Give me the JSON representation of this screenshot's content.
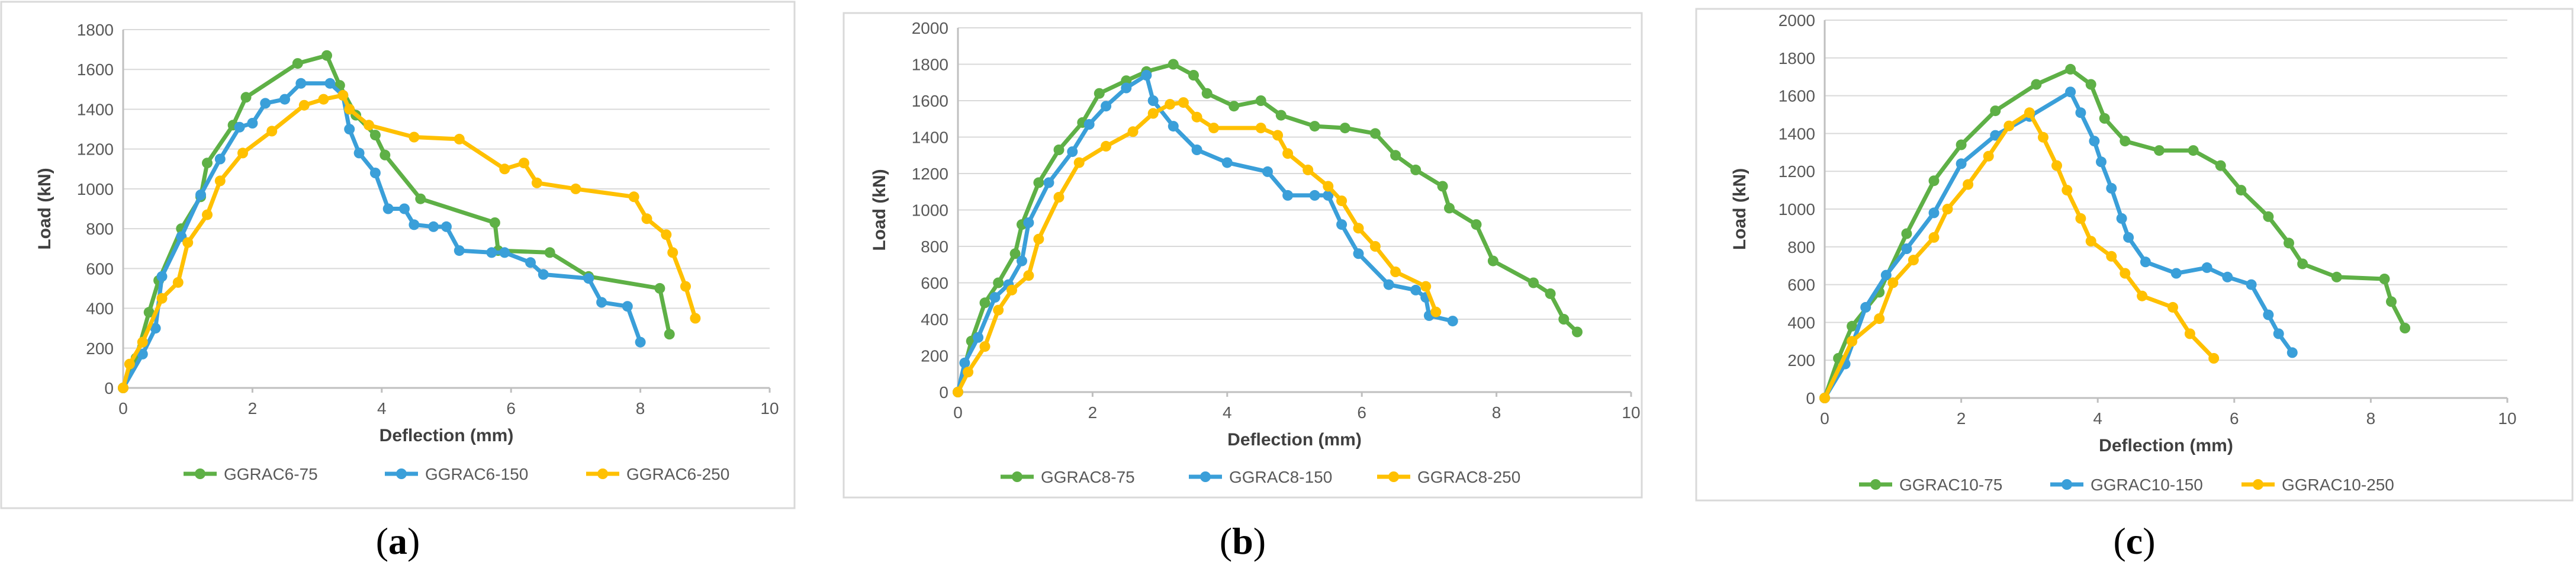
{
  "colors": {
    "GG": "#5eb046",
    "BL": "#3a9fd9",
    "YE": "#ffc000"
  },
  "chart_data": [
    {
      "type": "line",
      "panel_label": {
        "open": "(",
        "letter": "a",
        "close": ")"
      },
      "xlabel": "Deflection (mm)",
      "ylabel": "Load (kN)",
      "xlim": [
        0,
        10
      ],
      "ylim": [
        0,
        1800
      ],
      "xticks": [
        0,
        2,
        4,
        6,
        8,
        10
      ],
      "yticks": [
        0,
        200,
        400,
        600,
        800,
        1000,
        1200,
        1400,
        1600,
        1800
      ],
      "series": [
        {
          "name": "GGRAC6-75",
          "color": "GG",
          "points": [
            [
              0,
              0
            ],
            [
              0.2,
              150
            ],
            [
              0.4,
              380
            ],
            [
              0.55,
              540
            ],
            [
              0.9,
              800
            ],
            [
              1.2,
              960
            ],
            [
              1.3,
              1130
            ],
            [
              1.7,
              1320
            ],
            [
              1.9,
              1460
            ],
            [
              2.7,
              1630
            ],
            [
              3.15,
              1670
            ],
            [
              3.35,
              1520
            ],
            [
              3.6,
              1370
            ],
            [
              3.9,
              1270
            ],
            [
              4.05,
              1170
            ],
            [
              4.6,
              950
            ],
            [
              5.75,
              830
            ],
            [
              5.8,
              690
            ],
            [
              6.6,
              680
            ],
            [
              7.2,
              560
            ],
            [
              8.3,
              500
            ],
            [
              8.45,
              270
            ]
          ]
        },
        {
          "name": "GGRAC6-150",
          "color": "BL",
          "points": [
            [
              0,
              0
            ],
            [
              0.3,
              170
            ],
            [
              0.5,
              300
            ],
            [
              0.6,
              560
            ],
            [
              0.9,
              760
            ],
            [
              1.2,
              970
            ],
            [
              1.5,
              1150
            ],
            [
              1.8,
              1310
            ],
            [
              2.0,
              1330
            ],
            [
              2.2,
              1430
            ],
            [
              2.5,
              1450
            ],
            [
              2.75,
              1530
            ],
            [
              3.2,
              1530
            ],
            [
              3.4,
              1470
            ],
            [
              3.5,
              1300
            ],
            [
              3.65,
              1180
            ],
            [
              3.9,
              1080
            ],
            [
              4.1,
              900
            ],
            [
              4.35,
              900
            ],
            [
              4.5,
              820
            ],
            [
              4.8,
              810
            ],
            [
              5.0,
              810
            ],
            [
              5.2,
              690
            ],
            [
              5.7,
              680
            ],
            [
              5.9,
              680
            ],
            [
              6.3,
              630
            ],
            [
              6.5,
              570
            ],
            [
              7.2,
              550
            ],
            [
              7.4,
              430
            ],
            [
              7.8,
              410
            ],
            [
              8.0,
              230
            ]
          ]
        },
        {
          "name": "GGRAC6-250",
          "color": "YE",
          "points": [
            [
              0,
              0
            ],
            [
              0.1,
              120
            ],
            [
              0.3,
              230
            ],
            [
              0.6,
              450
            ],
            [
              0.85,
              530
            ],
            [
              1.0,
              730
            ],
            [
              1.3,
              870
            ],
            [
              1.5,
              1040
            ],
            [
              1.85,
              1180
            ],
            [
              2.3,
              1290
            ],
            [
              2.8,
              1420
            ],
            [
              3.1,
              1450
            ],
            [
              3.4,
              1470
            ],
            [
              3.5,
              1400
            ],
            [
              3.8,
              1320
            ],
            [
              4.5,
              1260
            ],
            [
              5.2,
              1250
            ],
            [
              5.9,
              1100
            ],
            [
              6.2,
              1130
            ],
            [
              6.4,
              1030
            ],
            [
              7.0,
              1000
            ],
            [
              7.9,
              960
            ],
            [
              8.1,
              850
            ],
            [
              8.4,
              770
            ],
            [
              8.5,
              680
            ],
            [
              8.7,
              510
            ],
            [
              8.85,
              350
            ]
          ]
        }
      ]
    },
    {
      "type": "line",
      "panel_label": {
        "open": "(",
        "letter": "b",
        "close": ")"
      },
      "xlabel": "Deflection (mm)",
      "ylabel": "Load (kN)",
      "xlim": [
        0,
        10
      ],
      "ylim": [
        0,
        2000
      ],
      "xticks": [
        0,
        2,
        4,
        6,
        8,
        10
      ],
      "yticks": [
        0,
        200,
        400,
        600,
        800,
        1000,
        1200,
        1400,
        1600,
        1800,
        2000
      ],
      "series": [
        {
          "name": "GGRAC8-75",
          "color": "GG",
          "points": [
            [
              0,
              0
            ],
            [
              0.2,
              280
            ],
            [
              0.4,
              490
            ],
            [
              0.6,
              600
            ],
            [
              0.85,
              760
            ],
            [
              0.95,
              920
            ],
            [
              1.2,
              1150
            ],
            [
              1.5,
              1330
            ],
            [
              1.85,
              1480
            ],
            [
              2.1,
              1640
            ],
            [
              2.5,
              1710
            ],
            [
              2.8,
              1760
            ],
            [
              3.2,
              1800
            ],
            [
              3.5,
              1740
            ],
            [
              3.7,
              1640
            ],
            [
              4.1,
              1570
            ],
            [
              4.5,
              1600
            ],
            [
              4.8,
              1520
            ],
            [
              5.3,
              1460
            ],
            [
              5.75,
              1450
            ],
            [
              6.2,
              1420
            ],
            [
              6.5,
              1300
            ],
            [
              6.8,
              1220
            ],
            [
              7.2,
              1130
            ],
            [
              7.3,
              1010
            ],
            [
              7.7,
              920
            ],
            [
              7.95,
              720
            ],
            [
              8.55,
              600
            ],
            [
              8.8,
              540
            ],
            [
              9.0,
              400
            ],
            [
              9.2,
              330
            ]
          ]
        },
        {
          "name": "GGRAC8-150",
          "color": "BL",
          "points": [
            [
              0,
              0
            ],
            [
              0.1,
              160
            ],
            [
              0.3,
              300
            ],
            [
              0.55,
              520
            ],
            [
              0.75,
              590
            ],
            [
              0.95,
              720
            ],
            [
              1.05,
              930
            ],
            [
              1.35,
              1150
            ],
            [
              1.7,
              1320
            ],
            [
              1.95,
              1470
            ],
            [
              2.2,
              1570
            ],
            [
              2.5,
              1670
            ],
            [
              2.8,
              1740
            ],
            [
              2.9,
              1600
            ],
            [
              3.2,
              1460
            ],
            [
              3.55,
              1330
            ],
            [
              4.0,
              1260
            ],
            [
              4.6,
              1210
            ],
            [
              4.9,
              1080
            ],
            [
              5.3,
              1080
            ],
            [
              5.5,
              1080
            ],
            [
              5.7,
              920
            ],
            [
              5.95,
              760
            ],
            [
              6.4,
              590
            ],
            [
              6.8,
              560
            ],
            [
              6.95,
              520
            ],
            [
              7.0,
              420
            ],
            [
              7.35,
              390
            ]
          ]
        },
        {
          "name": "GGRAC8-250",
          "color": "YE",
          "points": [
            [
              0,
              0
            ],
            [
              0.15,
              110
            ],
            [
              0.4,
              250
            ],
            [
              0.6,
              450
            ],
            [
              0.8,
              560
            ],
            [
              1.05,
              640
            ],
            [
              1.2,
              840
            ],
            [
              1.5,
              1070
            ],
            [
              1.8,
              1260
            ],
            [
              2.2,
              1350
            ],
            [
              2.6,
              1430
            ],
            [
              2.9,
              1530
            ],
            [
              3.15,
              1580
            ],
            [
              3.35,
              1590
            ],
            [
              3.55,
              1510
            ],
            [
              3.8,
              1450
            ],
            [
              4.5,
              1450
            ],
            [
              4.75,
              1410
            ],
            [
              4.9,
              1310
            ],
            [
              5.2,
              1220
            ],
            [
              5.5,
              1130
            ],
            [
              5.7,
              1050
            ],
            [
              5.95,
              900
            ],
            [
              6.2,
              800
            ],
            [
              6.5,
              660
            ],
            [
              6.95,
              580
            ],
            [
              7.1,
              440
            ]
          ]
        }
      ]
    },
    {
      "type": "line",
      "panel_label": {
        "open": "(",
        "letter": "c",
        "close": ")"
      },
      "xlabel": "Deflection (mm)",
      "ylabel": "Load (kN)",
      "xlim": [
        0,
        10
      ],
      "ylim": [
        0,
        2000
      ],
      "xticks": [
        0,
        2,
        4,
        6,
        8,
        10
      ],
      "yticks": [
        0,
        200,
        400,
        600,
        800,
        1000,
        1200,
        1400,
        1600,
        1800,
        2000
      ],
      "series": [
        {
          "name": "GGRAC10-75",
          "color": "GG",
          "points": [
            [
              0,
              0
            ],
            [
              0.2,
              210
            ],
            [
              0.4,
              380
            ],
            [
              0.8,
              560
            ],
            [
              1.2,
              870
            ],
            [
              1.6,
              1150
            ],
            [
              2.0,
              1340
            ],
            [
              2.5,
              1520
            ],
            [
              3.1,
              1660
            ],
            [
              3.6,
              1740
            ],
            [
              3.9,
              1660
            ],
            [
              4.1,
              1480
            ],
            [
              4.4,
              1360
            ],
            [
              4.9,
              1310
            ],
            [
              5.4,
              1310
            ],
            [
              5.8,
              1230
            ],
            [
              6.1,
              1100
            ],
            [
              6.5,
              960
            ],
            [
              6.8,
              820
            ],
            [
              7.0,
              710
            ],
            [
              7.5,
              640
            ],
            [
              8.2,
              630
            ],
            [
              8.3,
              510
            ],
            [
              8.5,
              370
            ]
          ]
        },
        {
          "name": "GGRAC10-150",
          "color": "BL",
          "points": [
            [
              0,
              0
            ],
            [
              0.3,
              180
            ],
            [
              0.6,
              480
            ],
            [
              0.9,
              650
            ],
            [
              1.2,
              790
            ],
            [
              1.6,
              980
            ],
            [
              2.0,
              1240
            ],
            [
              2.5,
              1390
            ],
            [
              3.0,
              1490
            ],
            [
              3.6,
              1620
            ],
            [
              3.75,
              1510
            ],
            [
              3.95,
              1360
            ],
            [
              4.05,
              1250
            ],
            [
              4.2,
              1110
            ],
            [
              4.35,
              950
            ],
            [
              4.45,
              850
            ],
            [
              4.7,
              720
            ],
            [
              5.15,
              660
            ],
            [
              5.6,
              690
            ],
            [
              5.9,
              640
            ],
            [
              6.25,
              600
            ],
            [
              6.5,
              440
            ],
            [
              6.65,
              340
            ],
            [
              6.85,
              240
            ]
          ]
        },
        {
          "name": "GGRAC10-250",
          "color": "YE",
          "points": [
            [
              0,
              0
            ],
            [
              0.4,
              300
            ],
            [
              0.8,
              420
            ],
            [
              1.0,
              610
            ],
            [
              1.3,
              730
            ],
            [
              1.6,
              850
            ],
            [
              1.8,
              1000
            ],
            [
              2.1,
              1130
            ],
            [
              2.4,
              1280
            ],
            [
              2.7,
              1440
            ],
            [
              3.0,
              1510
            ],
            [
              3.2,
              1380
            ],
            [
              3.4,
              1230
            ],
            [
              3.55,
              1100
            ],
            [
              3.75,
              950
            ],
            [
              3.9,
              830
            ],
            [
              4.2,
              750
            ],
            [
              4.4,
              660
            ],
            [
              4.65,
              540
            ],
            [
              5.1,
              480
            ],
            [
              5.35,
              340
            ],
            [
              5.7,
              210
            ]
          ]
        }
      ]
    }
  ]
}
